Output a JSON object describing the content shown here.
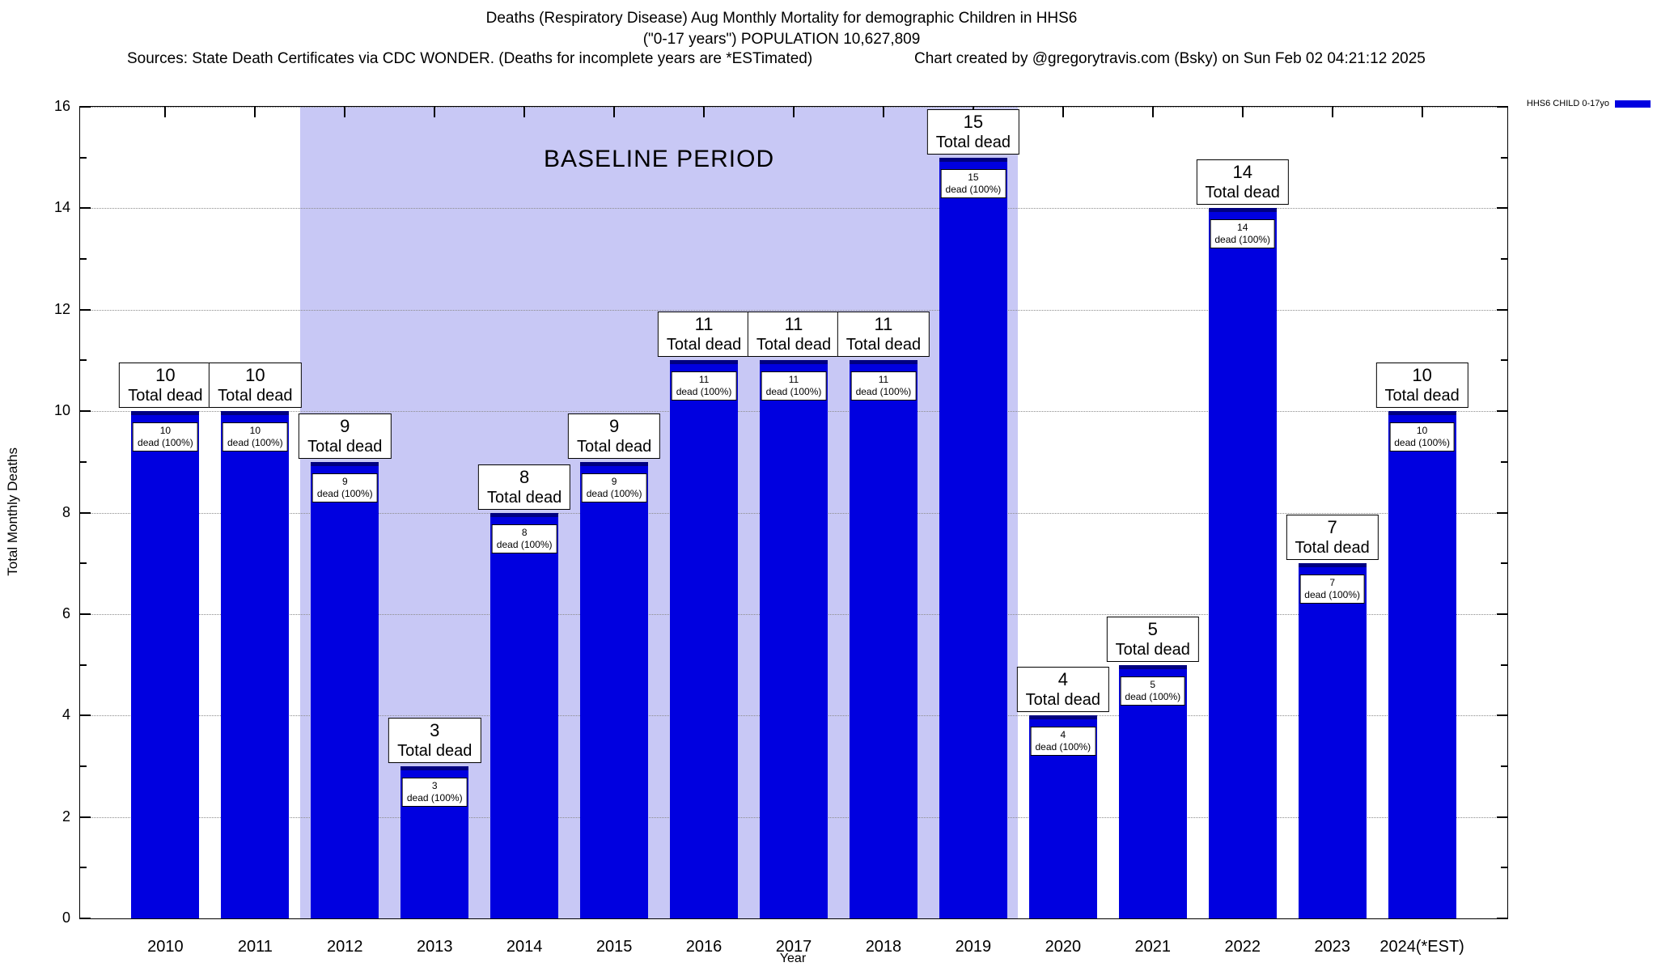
{
  "header": {
    "title_line1": "Deaths (Respiratory Disease) Aug Monthly Mortality for demographic Children in HHS6",
    "title_line2": "(\"0-17 years\") POPULATION 10,627,809",
    "sources": "Sources: State Death Certificates via CDC WONDER. (Deaths for incomplete years are *ESTimated)",
    "credit": "Chart created by @gregorytravis.com (Bsky) on Sun Feb 02 04:21:12 2025"
  },
  "chart_data": {
    "type": "bar",
    "title": "Deaths (Respiratory Disease) Aug Monthly Mortality for demographic Children in HHS6",
    "subtitle": "(\"0-17 years\") POPULATION 10,627,809",
    "categories": [
      "2010",
      "2011",
      "2012",
      "2013",
      "2014",
      "2015",
      "2016",
      "2017",
      "2018",
      "2019",
      "2020",
      "2021",
      "2022",
      "2023",
      "2024(*EST)"
    ],
    "values": [
      10,
      10,
      9,
      3,
      8,
      9,
      11,
      11,
      11,
      15,
      4,
      5,
      14,
      7,
      10
    ],
    "xlabel": "Year",
    "ylabel": "Total Monthly Deaths",
    "ylim": [
      0,
      16
    ],
    "ytick_step": 2,
    "grid": true,
    "bar_color": "#0000e0",
    "bar_edge_color": "#000080",
    "bar_label_suffix": "Total dead",
    "bar_inner_suffix": "dead (100%)",
    "baseline": {
      "label": "BASELINE PERIOD",
      "start_category": "2012",
      "end_category": "2019",
      "color": "#c8c8f5"
    },
    "legend": {
      "position": "top-right",
      "entries": [
        {
          "label": "HHS6 CHILD 0-17yo",
          "color": "#0000e0"
        }
      ]
    }
  }
}
